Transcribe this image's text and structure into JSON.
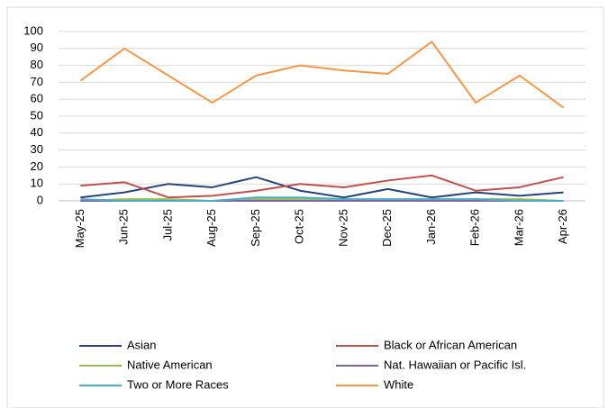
{
  "chart_data": {
    "type": "line",
    "categories": [
      "May-25",
      "Jun-25",
      "Jul-25",
      "Aug-25",
      "Sep-25",
      "Oct-25",
      "Nov-25",
      "Dec-25",
      "Jan-26",
      "Feb-26",
      "Mar-26",
      "Apr-26"
    ],
    "series": [
      {
        "name": "Asian",
        "color": "#264478",
        "values": [
          2,
          5,
          10,
          8,
          14,
          6,
          2,
          7,
          2,
          5,
          3,
          5
        ]
      },
      {
        "name": "Black or African American",
        "color": "#c0504d",
        "values": [
          9,
          11,
          2,
          3,
          6,
          10,
          8,
          12,
          15,
          6,
          8,
          14
        ]
      },
      {
        "name": "Native American",
        "color": "#9bbb59",
        "values": [
          0,
          1,
          1,
          0,
          1,
          1,
          0,
          0,
          0,
          1,
          1,
          0
        ]
      },
      {
        "name": "Nat. Hawaiian or Pacific Isl.",
        "color": "#8064a2",
        "values": [
          0,
          0,
          0,
          0,
          0,
          0,
          0,
          0,
          0,
          0,
          0,
          0
        ]
      },
      {
        "name": "Two or More Races",
        "color": "#4bacc6",
        "values": [
          1,
          0,
          0,
          0,
          2,
          2,
          1,
          1,
          1,
          1,
          0,
          0
        ]
      },
      {
        "name": "White",
        "color": "#f79646",
        "values": [
          71,
          90,
          74,
          58,
          74,
          80,
          77,
          75,
          94,
          58,
          74,
          55
        ]
      }
    ],
    "ylim": [
      0,
      100
    ],
    "yticks": [
      0,
      10,
      20,
      30,
      40,
      50,
      60,
      70,
      80,
      90,
      100
    ],
    "grid": true,
    "legend": "bottom"
  }
}
